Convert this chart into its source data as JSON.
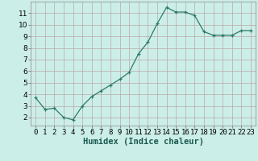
{
  "x": [
    0,
    1,
    2,
    3,
    4,
    5,
    6,
    7,
    8,
    9,
    10,
    11,
    12,
    13,
    14,
    15,
    16,
    17,
    18,
    19,
    20,
    21,
    22,
    23
  ],
  "y": [
    3.7,
    2.7,
    2.8,
    2.0,
    1.8,
    3.0,
    3.8,
    4.3,
    4.8,
    5.3,
    5.9,
    7.5,
    8.5,
    10.1,
    11.5,
    11.1,
    11.1,
    10.8,
    9.4,
    9.1,
    9.1,
    9.1,
    9.5,
    9.5
  ],
  "xlabel": "Humidex (Indice chaleur)",
  "xlim": [
    -0.5,
    23.5
  ],
  "ylim": [
    1.3,
    12.0
  ],
  "yticks": [
    2,
    3,
    4,
    5,
    6,
    7,
    8,
    9,
    10,
    11
  ],
  "xticks": [
    0,
    1,
    2,
    3,
    4,
    5,
    6,
    7,
    8,
    9,
    10,
    11,
    12,
    13,
    14,
    15,
    16,
    17,
    18,
    19,
    20,
    21,
    22,
    23
  ],
  "line_color": "#2d7a6a",
  "marker_color": "#2d7a6a",
  "bg_color": "#cceee8",
  "grid_color": "#b8a8a8",
  "axes_bg": "#cceee8",
  "xlabel_fontsize": 7.5,
  "tick_fontsize": 6.5
}
